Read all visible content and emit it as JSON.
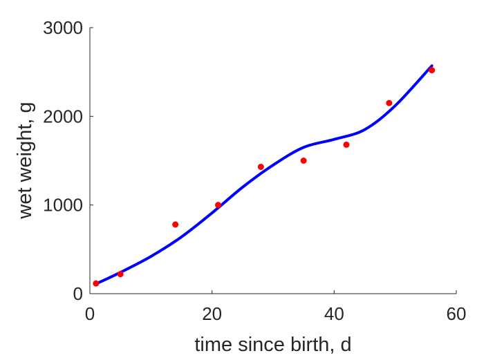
{
  "colors": {
    "background": "#ffffff",
    "axis": "#262626",
    "fit_line": "#0000ff",
    "data_points": "#ff0000"
  },
  "chart_data": {
    "type": "scatter",
    "title": "",
    "xlabel": "time since birth, d",
    "ylabel": "wet weight, g",
    "xlim": [
      0,
      60
    ],
    "ylim": [
      0,
      3000
    ],
    "xticks": [
      0,
      20,
      40,
      60
    ],
    "yticks": [
      0,
      1000,
      2000,
      3000
    ],
    "grid": false,
    "legend": "none",
    "series": [
      {
        "type": "scatter",
        "color": "#ff0000",
        "x": [
          1,
          5,
          14,
          21,
          28,
          35,
          42,
          49,
          56
        ],
        "y": [
          115,
          220,
          780,
          1000,
          1430,
          1500,
          1680,
          2150,
          2520
        ]
      },
      {
        "type": "line",
        "color": "#0000ff",
        "x": [
          1,
          5,
          10,
          15,
          20,
          25,
          30,
          35,
          40,
          45,
          50,
          56
        ],
        "y": [
          110,
          240,
          420,
          640,
          910,
          1200,
          1450,
          1650,
          1740,
          1850,
          2120,
          2570
        ]
      }
    ]
  }
}
